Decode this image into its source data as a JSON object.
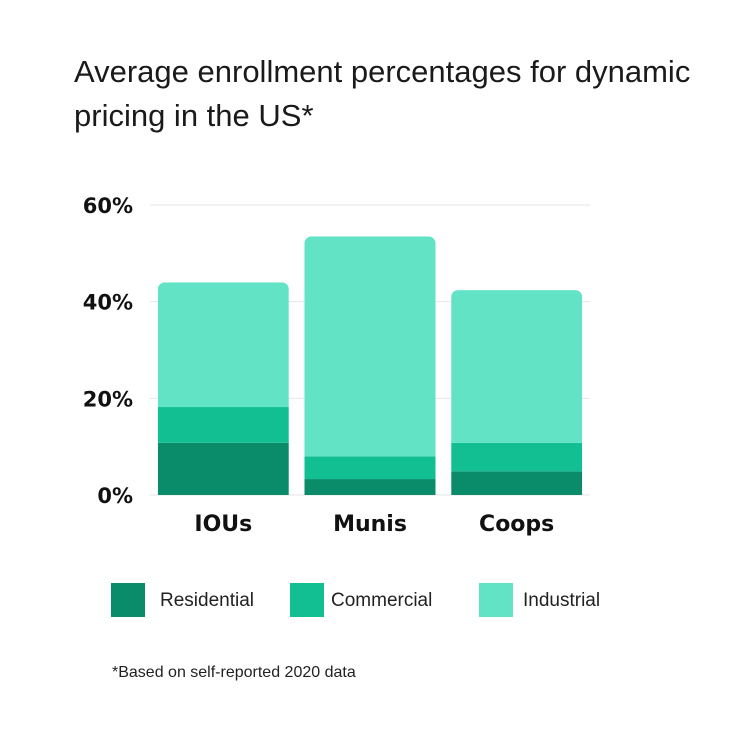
{
  "chart_data": {
    "type": "bar",
    "stacked": true,
    "title": "Average enrollment percentages for dynamic pricing in the US*",
    "categories": [
      "IOUs",
      "Munis",
      "Coops"
    ],
    "series": [
      {
        "name": "Residential",
        "color": "#0a8c6a",
        "values": [
          10.8,
          3.3,
          4.9
        ]
      },
      {
        "name": "Commercial",
        "color": "#11bf93",
        "values": [
          7.4,
          4.7,
          5.9
        ]
      },
      {
        "name": "Industrial",
        "color": "#62e3c6",
        "values": [
          25.8,
          45.5,
          31.6
        ]
      }
    ],
    "ylim": [
      0,
      60
    ],
    "yticks": [
      0,
      20,
      40,
      60
    ],
    "ytick_labels": [
      "0%",
      "20%",
      "40%",
      "60%"
    ],
    "xlabel": "",
    "ylabel": "",
    "grid": true,
    "legend_position": "bottom",
    "footnote": "*Based on self-reported 2020 data"
  }
}
